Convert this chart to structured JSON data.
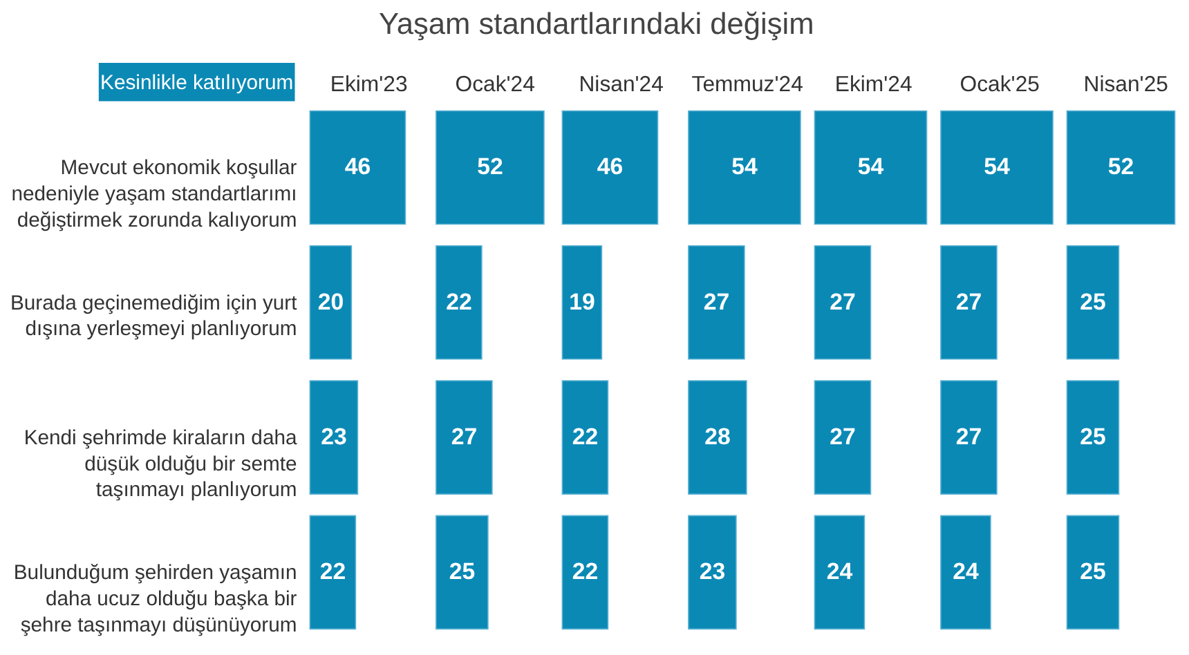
{
  "chart_data": [
    {
      "type": "bar",
      "orientation": "horizontal",
      "title": "Yaşam standartlarındaki değişim",
      "annotations": [
        "Kesinlikle katılıyorum"
      ],
      "xlabel": "Ekim'23",
      "tick_labels": "y",
      "categories": [
        "Mevcut ekonomik koşullar nedeniyle yaşam standartlarımı değiştirmek zorunda kalıyorum",
        "Burada geçinemediğim için yurt dışına yerleşmeyi planlıyorum",
        "Kendi şehrimde kiraların daha düşük olduğu bir semte taşınmayı planlıyorum",
        "Bulunduğum şehirden yaşamın daha ucuz olduğu başka bir şehre taşınmayı düşünüyorum"
      ],
      "values": [
        46,
        20,
        23,
        22
      ],
      "color": "#0b89b5",
      "data_labels": true
    },
    {
      "type": "bar",
      "orientation": "horizontal",
      "xlabel": "Ocak'24",
      "tick_labels": false,
      "categories": [
        "Mevcut ekonomik koşullar nedeniyle yaşam standartlarımı değiştirmek zorunda kalıyorum",
        "Burada geçinemediğim için yurt dışına yerleşmeyi planlıyorum",
        "Kendi şehrimde kiraların daha düşük olduğu bir semte taşınmayı planlıyorum",
        "Bulunduğum şehirden yaşamın daha ucuz olduğu başka bir şehre taşınmayı düşünüyorum"
      ],
      "values": [
        52,
        22,
        27,
        25
      ],
      "color": "#0b89b5",
      "data_labels": true
    },
    {
      "type": "bar",
      "orientation": "horizontal",
      "xlabel": "Nisan'24",
      "tick_labels": false,
      "categories": [
        "Mevcut ekonomik koşullar nedeniyle yaşam standartlarımı değiştirmek zorunda kalıyorum",
        "Burada geçinemediğim için yurt dışına yerleşmeyi planlıyorum",
        "Kendi şehrimde kiraların daha düşük olduğu bir semte taşınmayı planlıyorum",
        "Bulunduğum şehirden yaşamın daha ucuz olduğu başka bir şehre taşınmayı düşünüyorum"
      ],
      "values": [
        46,
        19,
        22,
        22
      ],
      "color": "#0b89b5",
      "data_labels": true
    },
    {
      "type": "bar",
      "orientation": "horizontal",
      "xlabel": "Temmuz'24",
      "tick_labels": false,
      "categories": [
        "Mevcut ekonomik koşullar nedeniyle yaşam standartlarımı değiştirmek zorunda kalıyorum",
        "Burada geçinemediğim için yurt dışına yerleşmeyi planlıyorum",
        "Kendi şehrimde kiraların daha düşük olduğu bir semte taşınmayı planlıyorum",
        "Bulunduğum şehirden yaşamın daha ucuz olduğu başka bir şehre taşınmayı düşünüyorum"
      ],
      "values": [
        54,
        27,
        28,
        23
      ],
      "color": "#0b89b5",
      "data_labels": true
    },
    {
      "type": "bar",
      "orientation": "horizontal",
      "xlabel": "Ekim'24",
      "tick_labels": false,
      "categories": [
        "Mevcut ekonomik koşullar nedeniyle yaşam standartlarımı değiştirmek zorunda kalıyorum",
        "Burada geçinemediğim için yurt dışına yerleşmeyi planlıyorum",
        "Kendi şehrimde kiraların daha düşük olduğu bir semte taşınmayı planlıyorum",
        "Bulunduğum şehirden yaşamın daha ucuz olduğu başka bir şehre taşınmayı düşünüyorum"
      ],
      "values": [
        54,
        27,
        27,
        24
      ],
      "color": "#0b89b5",
      "data_labels": true
    },
    {
      "type": "bar",
      "orientation": "horizontal",
      "xlabel": "Ocak'25",
      "tick_labels": false,
      "categories": [
        "Mevcut ekonomik koşullar nedeniyle yaşam standartlarımı değiştirmek zorunda kalıyorum",
        "Burada geçinemediğim için yurt dışına yerleşmeyi planlıyorum",
        "Kendi şehrimde kiraların daha düşük olduğu bir semte taşınmayı planlıyorum",
        "Bulunduğum şehirden yaşamın daha ucuz olduğu başka bir şehre taşınmayı düşünüyorum"
      ],
      "values": [
        54,
        27,
        27,
        24
      ],
      "color": "#0b89b5",
      "data_labels": true
    },
    {
      "type": "bar",
      "orientation": "horizontal",
      "xlabel": "Nisan'25",
      "tick_labels": false,
      "categories": [
        "Mevcut ekonomik koşullar nedeniyle yaşam standartlarımı değiştirmek zorunda kalıyorum",
        "Burada geçinemediğim için yurt dışına yerleşmeyi planlıyorum",
        "Kendi şehrimde kiraların daha düşük olduğu bir semte taşınmayı planlıyorum",
        "Bulunduğum şehirden yaşamın daha ucuz olduğu başka bir şehre taşınmayı düşünüyorum"
      ],
      "values": [
        52,
        25,
        25,
        25
      ],
      "color": "#0b89b5",
      "data_labels": true
    }
  ]
}
